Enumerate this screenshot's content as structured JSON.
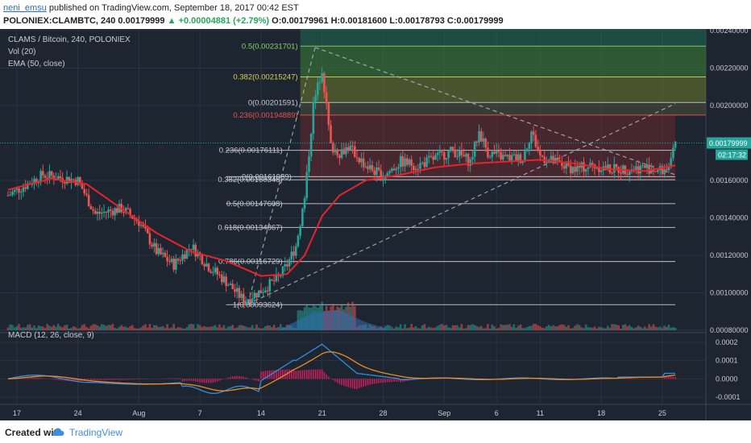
{
  "header": {
    "author": "neni_emsu",
    "published_text": "published on TradingView.com, September 18, 2017 00:42 EST",
    "symbol_line": "POLONIEX:CLAMBTC, 240",
    "price": "0.00179999",
    "change": "+0.00004881 (+2.79%)",
    "ohlc": "O:0.00179961 H:0.00181600 L:0.00178793 C:0.00179999"
  },
  "legend": {
    "title": "CLAMS / Bitcoin, 240, POLONIEX",
    "vol": "Vol (20)",
    "ema": "EMA (50, close)",
    "macd": "MACD (12, 26, close, 9)"
  },
  "footer": {
    "created": "Created with",
    "brand": "TradingView"
  },
  "colors": {
    "bg": "#1d2531",
    "up": "#26a69a",
    "down": "#ef5350",
    "ema": "#e8232c",
    "macd": "#2f8fe0",
    "signal": "#f08a24",
    "hist": "#e91e63",
    "grid": "#2a3443"
  },
  "chart_data": {
    "type": "candlestick",
    "title": "CLAMS / Bitcoin, 240, POLONIEX",
    "price_axis": {
      "ticks": [
        "0.00240000",
        "0.00220000",
        "0.00200000",
        "0.00160000",
        "0.00140000",
        "0.00120000",
        "0.00100000",
        "0.00080000"
      ],
      "ylim": [
        0.0008,
        0.0024
      ],
      "last_price_label": "0.00179999",
      "countdown_label": "02:17:32"
    },
    "macd_axis": {
      "ticks": [
        "0.0002",
        "0.0001",
        "0.0000",
        "-0.0001"
      ],
      "ylim": [
        -0.00014,
        0.00024
      ]
    },
    "date_ticks": [
      "17",
      "24",
      "Aug",
      "7",
      "14",
      "21",
      "28",
      "Sep",
      "6",
      "11",
      "18",
      "25"
    ],
    "fib_upper": [
      {
        "label": "0.5(0.00231701)",
        "value": 0.00231701
      },
      {
        "label": "0.382(0.00215247)",
        "value": 0.00215247
      },
      {
        "label": "0(0.00201591)",
        "value": 0.00201591
      },
      {
        "label": "0.236(0.00194889)",
        "value": 0.00194889
      }
    ],
    "fib_lower": [
      {
        "label": "0.236(0.00176111)",
        "value": 0.00176111
      },
      {
        "label": "0.382(0.00160348)",
        "value": 0.00160348
      },
      {
        "label": "0(0.00161989)",
        "value": 0.00161989
      },
      {
        "label": "0.5(0.00147608)",
        "value": 0.00147608
      },
      {
        "label": "0.618(0.00134867)",
        "value": 0.00134867
      },
      {
        "label": "0.786(0.00116729)",
        "value": 0.00116729
      },
      {
        "label": "1(0.00093624)",
        "value": 0.00093624
      }
    ],
    "price_path_days": [
      [
        0,
        0.00152
      ],
      [
        4,
        0.00163
      ],
      [
        8,
        0.0016
      ],
      [
        10,
        0.00142
      ],
      [
        13,
        0.00145
      ],
      [
        15,
        0.00138
      ],
      [
        17,
        0.00122
      ],
      [
        19,
        0.00115
      ],
      [
        21,
        0.00125
      ],
      [
        23,
        0.00114
      ],
      [
        25,
        0.00106
      ],
      [
        27,
        0.00096
      ],
      [
        29,
        0.00101
      ],
      [
        31,
        0.00108
      ],
      [
        32,
        0.00115
      ],
      [
        33,
        0.00125
      ],
      [
        34,
        0.0015
      ],
      [
        35,
        0.002
      ],
      [
        36,
        0.0022
      ],
      [
        37,
        0.00178
      ],
      [
        38,
        0.00175
      ],
      [
        39,
        0.00178
      ],
      [
        41,
        0.00168
      ],
      [
        43,
        0.00162
      ],
      [
        45,
        0.0017
      ],
      [
        47,
        0.00168
      ],
      [
        49,
        0.00172
      ],
      [
        51,
        0.00176
      ],
      [
        53,
        0.0017
      ],
      [
        54,
        0.00186
      ],
      [
        55,
        0.00175
      ],
      [
        57,
        0.00172
      ],
      [
        59,
        0.00172
      ],
      [
        60,
        0.00186
      ],
      [
        61,
        0.00173
      ],
      [
        63,
        0.00169
      ],
      [
        65,
        0.00166
      ],
      [
        67,
        0.00168
      ],
      [
        69,
        0.00166
      ],
      [
        71,
        0.00166
      ],
      [
        73,
        0.00167
      ],
      [
        75,
        0.00165
      ],
      [
        76,
        0.00169
      ],
      [
        76.5,
        0.0018
      ]
    ],
    "ema_path_days": [
      [
        0,
        0.00155
      ],
      [
        5,
        0.00161
      ],
      [
        9,
        0.00158
      ],
      [
        13,
        0.00145
      ],
      [
        17,
        0.00132
      ],
      [
        21,
        0.00122
      ],
      [
        25,
        0.00117
      ],
      [
        29,
        0.00109
      ],
      [
        32,
        0.0011
      ],
      [
        34,
        0.0012
      ],
      [
        36,
        0.00141
      ],
      [
        38,
        0.00152
      ],
      [
        41,
        0.0016
      ],
      [
        45,
        0.00163
      ],
      [
        49,
        0.00167
      ],
      [
        53,
        0.00169
      ],
      [
        57,
        0.0017
      ],
      [
        61,
        0.00171
      ],
      [
        65,
        0.00169
      ],
      [
        69,
        0.00166
      ],
      [
        73,
        0.00165
      ],
      [
        76.5,
        0.00168
      ]
    ]
  }
}
